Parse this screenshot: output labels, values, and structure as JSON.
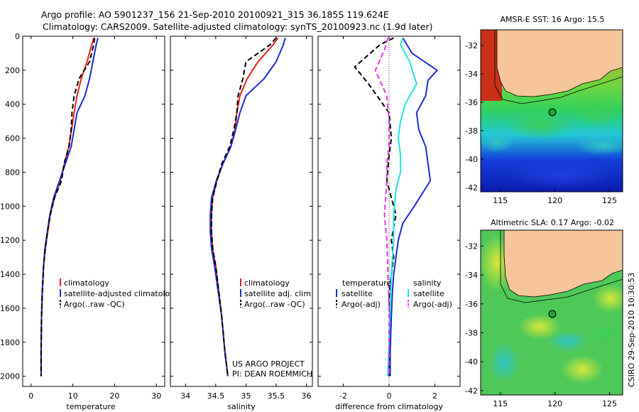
{
  "header": {
    "line1": "Argo profile: AO 5901237_156 21-Sep-2010 20100921_315 36.185S 119.624E",
    "line2": "Climatology: CARS2009. Satellite-adjusted climatology: synTS_20100923.nc (1.9d later)"
  },
  "credit": "CSIRO 29-Sep-2010 10:30:53",
  "project": {
    "line1": "US ARGO PROJECT",
    "line2": "PI: DEAN ROEMMICH"
  },
  "colors": {
    "climatology": "#e8231e",
    "satellite": "#1c2bd9",
    "argo": "#000000",
    "satellite_diff": "#1ee3e8",
    "argo_adj_diff": "#e632e6",
    "land": "#f7c59b"
  },
  "chart_data": [
    {
      "type": "line",
      "id": "temperature",
      "xlabel": "temperature",
      "ylabel": "",
      "xlim": [
        -2,
        32
      ],
      "ylim": [
        2060,
        0
      ],
      "xticks": [
        0,
        10,
        20,
        30
      ],
      "depth_ticks": [
        "0",
        "200",
        "400",
        "600",
        "800",
        "1000",
        "1200",
        "1400",
        "1600",
        "1800",
        "2000"
      ],
      "legend": {
        "position": "lower-right",
        "entries": [
          "climatology",
          "satellite-adjusted climatology",
          "Argo(..raw -QC)"
        ]
      },
      "series": [
        {
          "name": "climatology",
          "color": "climatology",
          "dash": false,
          "x": [
            15.0,
            14.5,
            13.4,
            12.0,
            11.0,
            10.3,
            9.7,
            9.0,
            8.0,
            7.0,
            5.6,
            4.6,
            4.0,
            3.4,
            3.0,
            2.7,
            2.5,
            2.4,
            2.4
          ],
          "y": [
            10,
            50,
            150,
            250,
            350,
            450,
            550,
            650,
            750,
            850,
            950,
            1050,
            1150,
            1250,
            1350,
            1500,
            1650,
            1850,
            2000
          ]
        },
        {
          "name": "satellite-adjusted climatology",
          "color": "satellite",
          "dash": false,
          "x": [
            16.0,
            15.6,
            14.8,
            14.0,
            12.9,
            11.0,
            10.3,
            9.6,
            8.2,
            6.8,
            5.4,
            4.5,
            3.9,
            3.3,
            3.0,
            2.7,
            2.5,
            2.4,
            2.4
          ],
          "y": [
            10,
            50,
            150,
            250,
            350,
            450,
            550,
            650,
            750,
            850,
            950,
            1050,
            1150,
            1250,
            1350,
            1500,
            1650,
            1850,
            2000
          ]
        },
        {
          "name": "Argo(..raw -QC)",
          "color": "argo",
          "dash": true,
          "x": [
            15.2,
            15.0,
            14.0,
            11.5,
            10.3,
            9.8,
            9.6,
            9.1,
            7.9,
            7.3,
            5.6,
            4.6,
            3.9,
            3.4,
            3.0,
            2.7,
            2.5,
            2.4,
            2.4
          ],
          "y": [
            10,
            50,
            150,
            250,
            350,
            450,
            550,
            650,
            750,
            850,
            950,
            1050,
            1150,
            1250,
            1350,
            1500,
            1650,
            1850,
            2000
          ]
        }
      ]
    },
    {
      "type": "line",
      "id": "salinity",
      "xlabel": "salinity",
      "ylabel": "",
      "xlim": [
        33.75,
        36.1
      ],
      "ylim": [
        2060,
        0
      ],
      "xticks": [
        34,
        34.5,
        35,
        35.5,
        36
      ],
      "legend": {
        "position": "lower-right",
        "entries": [
          "climatology",
          "satellite adj. clim.",
          "Argo(..raw -QC)"
        ]
      },
      "series": [
        {
          "name": "climatology",
          "color": "climatology",
          "dash": false,
          "x": [
            35.53,
            35.45,
            35.2,
            35.02,
            34.9,
            34.85,
            34.82,
            34.75,
            34.62,
            34.52,
            34.45,
            34.43,
            34.43,
            34.45,
            34.5,
            34.55,
            34.6,
            34.65,
            34.7
          ],
          "y": [
            10,
            50,
            150,
            250,
            350,
            450,
            550,
            650,
            750,
            850,
            950,
            1050,
            1150,
            1250,
            1350,
            1500,
            1650,
            1850,
            2000
          ]
        },
        {
          "name": "satellite adj. clim.",
          "color": "satellite",
          "dash": false,
          "x": [
            35.65,
            35.62,
            35.5,
            35.3,
            35.0,
            34.9,
            34.83,
            34.75,
            34.62,
            34.51,
            34.43,
            34.41,
            34.41,
            34.43,
            34.48,
            34.54,
            34.6,
            34.65,
            34.7
          ],
          "y": [
            10,
            50,
            150,
            250,
            350,
            450,
            550,
            650,
            750,
            850,
            950,
            1050,
            1150,
            1250,
            1350,
            1500,
            1650,
            1850,
            2000
          ]
        },
        {
          "name": "Argo(..raw -QC)",
          "color": "argo",
          "dash": true,
          "x": [
            35.5,
            35.4,
            35.0,
            34.95,
            34.87,
            34.85,
            34.8,
            34.73,
            34.6,
            34.52,
            34.45,
            34.43,
            34.43,
            34.45,
            34.5,
            34.55,
            34.6,
            34.65,
            34.7
          ],
          "y": [
            10,
            50,
            150,
            250,
            350,
            450,
            550,
            650,
            750,
            850,
            950,
            1050,
            1150,
            1250,
            1350,
            1500,
            1650,
            1850,
            2000
          ]
        }
      ]
    },
    {
      "type": "line",
      "id": "difference",
      "xlabel": "difference from climatology",
      "ylabel": "",
      "xlim": [
        -3.1,
        3.1
      ],
      "ylim": [
        2060,
        0
      ],
      "xticks": [
        -2,
        0,
        2
      ],
      "legend": {
        "position": "lower-right",
        "groups": [
          {
            "title": "temperature",
            "entries": [
              "satellite",
              "Argo(-adj)"
            ]
          },
          {
            "title": "salinity",
            "entries": [
              "satellite",
              "Argo(-adj)"
            ]
          }
        ]
      },
      "series": [
        {
          "name": "temperature satellite",
          "color": "satellite",
          "dash": false,
          "x": [
            0.6,
            1.0,
            2.1,
            1.7,
            1.6,
            1.2,
            1.3,
            1.6,
            1.8,
            1.1,
            0.6,
            0.4,
            0.3,
            0.2,
            0.15,
            0.1,
            0.05,
            0.05
          ],
          "y": [
            10,
            100,
            200,
            260,
            350,
            450,
            550,
            650,
            850,
            1000,
            1100,
            1200,
            1300,
            1400,
            1500,
            1650,
            1850,
            2000
          ]
        },
        {
          "name": "temperature Argo(-adj)",
          "color": "argo",
          "dash": true,
          "x": [
            0.2,
            -0.4,
            -1.5,
            -0.9,
            0.0,
            0.1,
            0.0,
            -0.1,
            0.1,
            0.3,
            0.1,
            0.2,
            0.05,
            0.0,
            0.05,
            0.0,
            0.0
          ],
          "y": [
            10,
            50,
            180,
            280,
            450,
            600,
            700,
            850,
            950,
            1050,
            1200,
            1300,
            1450,
            1550,
            1650,
            1850,
            2000
          ]
        },
        {
          "name": "salinity satellite",
          "color": "satellite_diff",
          "dash": false,
          "x": [
            0.6,
            0.5,
            0.9,
            1.2,
            0.7,
            0.5,
            0.4,
            0.5,
            0.5,
            0.3,
            0.2,
            0.2,
            0.1,
            0.05,
            0.0,
            -0.05,
            -0.05
          ],
          "y": [
            10,
            50,
            150,
            280,
            400,
            500,
            600,
            700,
            800,
            900,
            1050,
            1200,
            1400,
            1600,
            1800,
            1950,
            2000
          ]
        },
        {
          "name": "salinity Argo(-adj)",
          "color": "argo_adj_diff",
          "dash": true,
          "x": [
            -0.05,
            -0.2,
            -0.6,
            -0.1,
            0.0,
            0.0,
            -0.1,
            -0.1,
            -0.15,
            -0.2,
            -0.1,
            -0.05,
            0.0,
            0.0,
            0.0
          ],
          "y": [
            10,
            80,
            200,
            350,
            500,
            650,
            750,
            850,
            950,
            1050,
            1200,
            1400,
            1600,
            1800,
            2000
          ]
        }
      ]
    }
  ],
  "maps": [
    {
      "id": "sst",
      "title": "AMSR-E SST: 16 Argo: 15.5",
      "lat_ticks": [
        "-32",
        "-34",
        "-36",
        "-38",
        "-40",
        "-42"
      ],
      "lon_ticks": [
        "115",
        "120",
        "125"
      ]
    },
    {
      "id": "sla",
      "title": "Altimetric SLA: 0.17 Argo: -0.02",
      "lat_ticks": [
        "-32",
        "-34",
        "-36",
        "-38",
        "-40",
        "-42"
      ],
      "lon_ticks": [
        "115",
        "120",
        "125"
      ]
    }
  ]
}
